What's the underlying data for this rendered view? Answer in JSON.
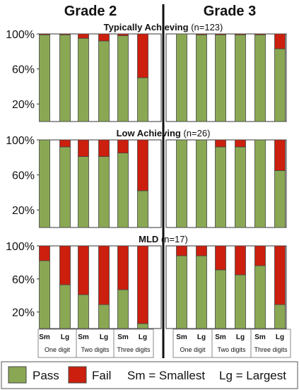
{
  "chart_data": {
    "type": "bar",
    "stacked": true,
    "column_headers": [
      "Grade 2",
      "Grade 3"
    ],
    "categories": [
      "Sm",
      "Lg",
      "Sm",
      "Lg",
      "Sm",
      "Lg"
    ],
    "groups": [
      "One digit",
      "Two digits",
      "Three digits"
    ],
    "yticks": [
      "100%",
      "60%",
      "20%"
    ],
    "ylim": [
      0,
      100
    ],
    "grid": false,
    "colors": {
      "Pass": "#8aa854",
      "Fail": "#cc1f0e"
    },
    "panels": [
      {
        "title": "Typically Achieving",
        "n": "(n=123)",
        "series": [
          {
            "name": "Pass",
            "grade2": [
              99,
              99,
              95,
              92,
              98,
              50
            ],
            "grade3": [
              100,
              99,
              99,
              99,
              99,
              83
            ]
          },
          {
            "name": "Fail",
            "grade2": [
              1,
              1,
              5,
              8,
              2,
              50
            ],
            "grade3": [
              0,
              1,
              1,
              1,
              1,
              17
            ]
          }
        ]
      },
      {
        "title": "Low Achieving",
        "n": "(n=26)",
        "series": [
          {
            "name": "Pass",
            "grade2": [
              100,
              92,
              81,
              81,
              85,
              42
            ],
            "grade3": [
              100,
              100,
              92,
              92,
              100,
              65
            ]
          },
          {
            "name": "Fail",
            "grade2": [
              0,
              8,
              19,
              19,
              15,
              58
            ],
            "grade3": [
              0,
              0,
              8,
              8,
              0,
              35
            ]
          }
        ]
      },
      {
        "title": "MLD",
        "n": "(n=17)",
        "series": [
          {
            "name": "Pass",
            "grade2": [
              82,
              53,
              41,
              29,
              47,
              6
            ],
            "grade3": [
              88,
              88,
              71,
              65,
              76,
              29
            ]
          },
          {
            "name": "Fail",
            "grade2": [
              18,
              47,
              59,
              71,
              53,
              94
            ],
            "grade3": [
              12,
              12,
              29,
              35,
              24,
              71
            ]
          }
        ]
      }
    ],
    "legend": {
      "placement": "bottom",
      "items": [
        {
          "label": "Pass",
          "color": "#8aa854"
        },
        {
          "label": "Fail",
          "color": "#cc1f0e"
        }
      ],
      "notes": [
        "Sm = Smallest",
        "Lg = Largest"
      ]
    }
  }
}
